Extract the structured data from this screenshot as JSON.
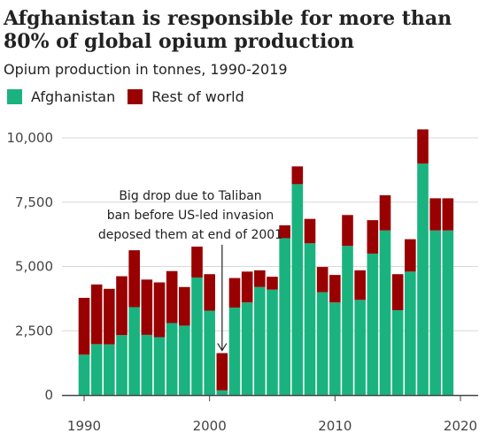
{
  "colors": {
    "afghanistan": "#1ab37f",
    "rest_of_world": "#990000",
    "grid": "#d9d9d9",
    "axis": "#444444"
  },
  "chart_data": {
    "type": "bar",
    "stacked": true,
    "title": "Afghanistan is responsible for more than 80% of global opium production",
    "subtitle": "Opium production in tonnes, 1990-2019",
    "x": [
      1990,
      1991,
      1992,
      1993,
      1994,
      1995,
      1996,
      1997,
      1998,
      1999,
      2000,
      2001,
      2002,
      2003,
      2004,
      2005,
      2006,
      2007,
      2008,
      2009,
      2010,
      2011,
      2012,
      2013,
      2014,
      2015,
      2016,
      2017,
      2018,
      2019
    ],
    "series": [
      {
        "name": "Afghanistan",
        "values": [
          1570,
          1980,
          1970,
          2330,
          3420,
          2340,
          2250,
          2800,
          2700,
          4570,
          3280,
          180,
          3400,
          3600,
          4200,
          4100,
          6100,
          8200,
          5900,
          4000,
          3600,
          5800,
          3700,
          5500,
          6400,
          3300,
          4800,
          9000,
          6400,
          6400
        ]
      },
      {
        "name": "Rest of world",
        "values": [
          2210,
          2320,
          2160,
          2290,
          2210,
          2150,
          2130,
          2020,
          1500,
          1200,
          1420,
          1450,
          1150,
          1200,
          650,
          500,
          500,
          690,
          950,
          980,
          1070,
          1200,
          1150,
          1300,
          1370,
          1400,
          1260,
          1330,
          1250,
          1250
        ]
      }
    ],
    "ylim": [
      0,
      10600
    ],
    "yticks": [
      {
        "value": 0,
        "label": "0"
      },
      {
        "value": 2500,
        "label": "2,500"
      },
      {
        "value": 5000,
        "label": "5,000"
      },
      {
        "value": 7500,
        "label": "7,500"
      },
      {
        "value": 10000,
        "label": "10,000"
      }
    ],
    "xticks": [
      {
        "value": 1990,
        "label": "1990"
      },
      {
        "value": 2000,
        "label": "2000"
      },
      {
        "value": 2010,
        "label": "2010"
      },
      {
        "value": 2020,
        "label": "2020"
      }
    ],
    "grid": true,
    "legend": "top-left",
    "annotation": {
      "lines": [
        "Big drop due to Taliban",
        "ban before US-led invasion",
        "deposed them at end of 2001"
      ],
      "year": 2001
    }
  }
}
